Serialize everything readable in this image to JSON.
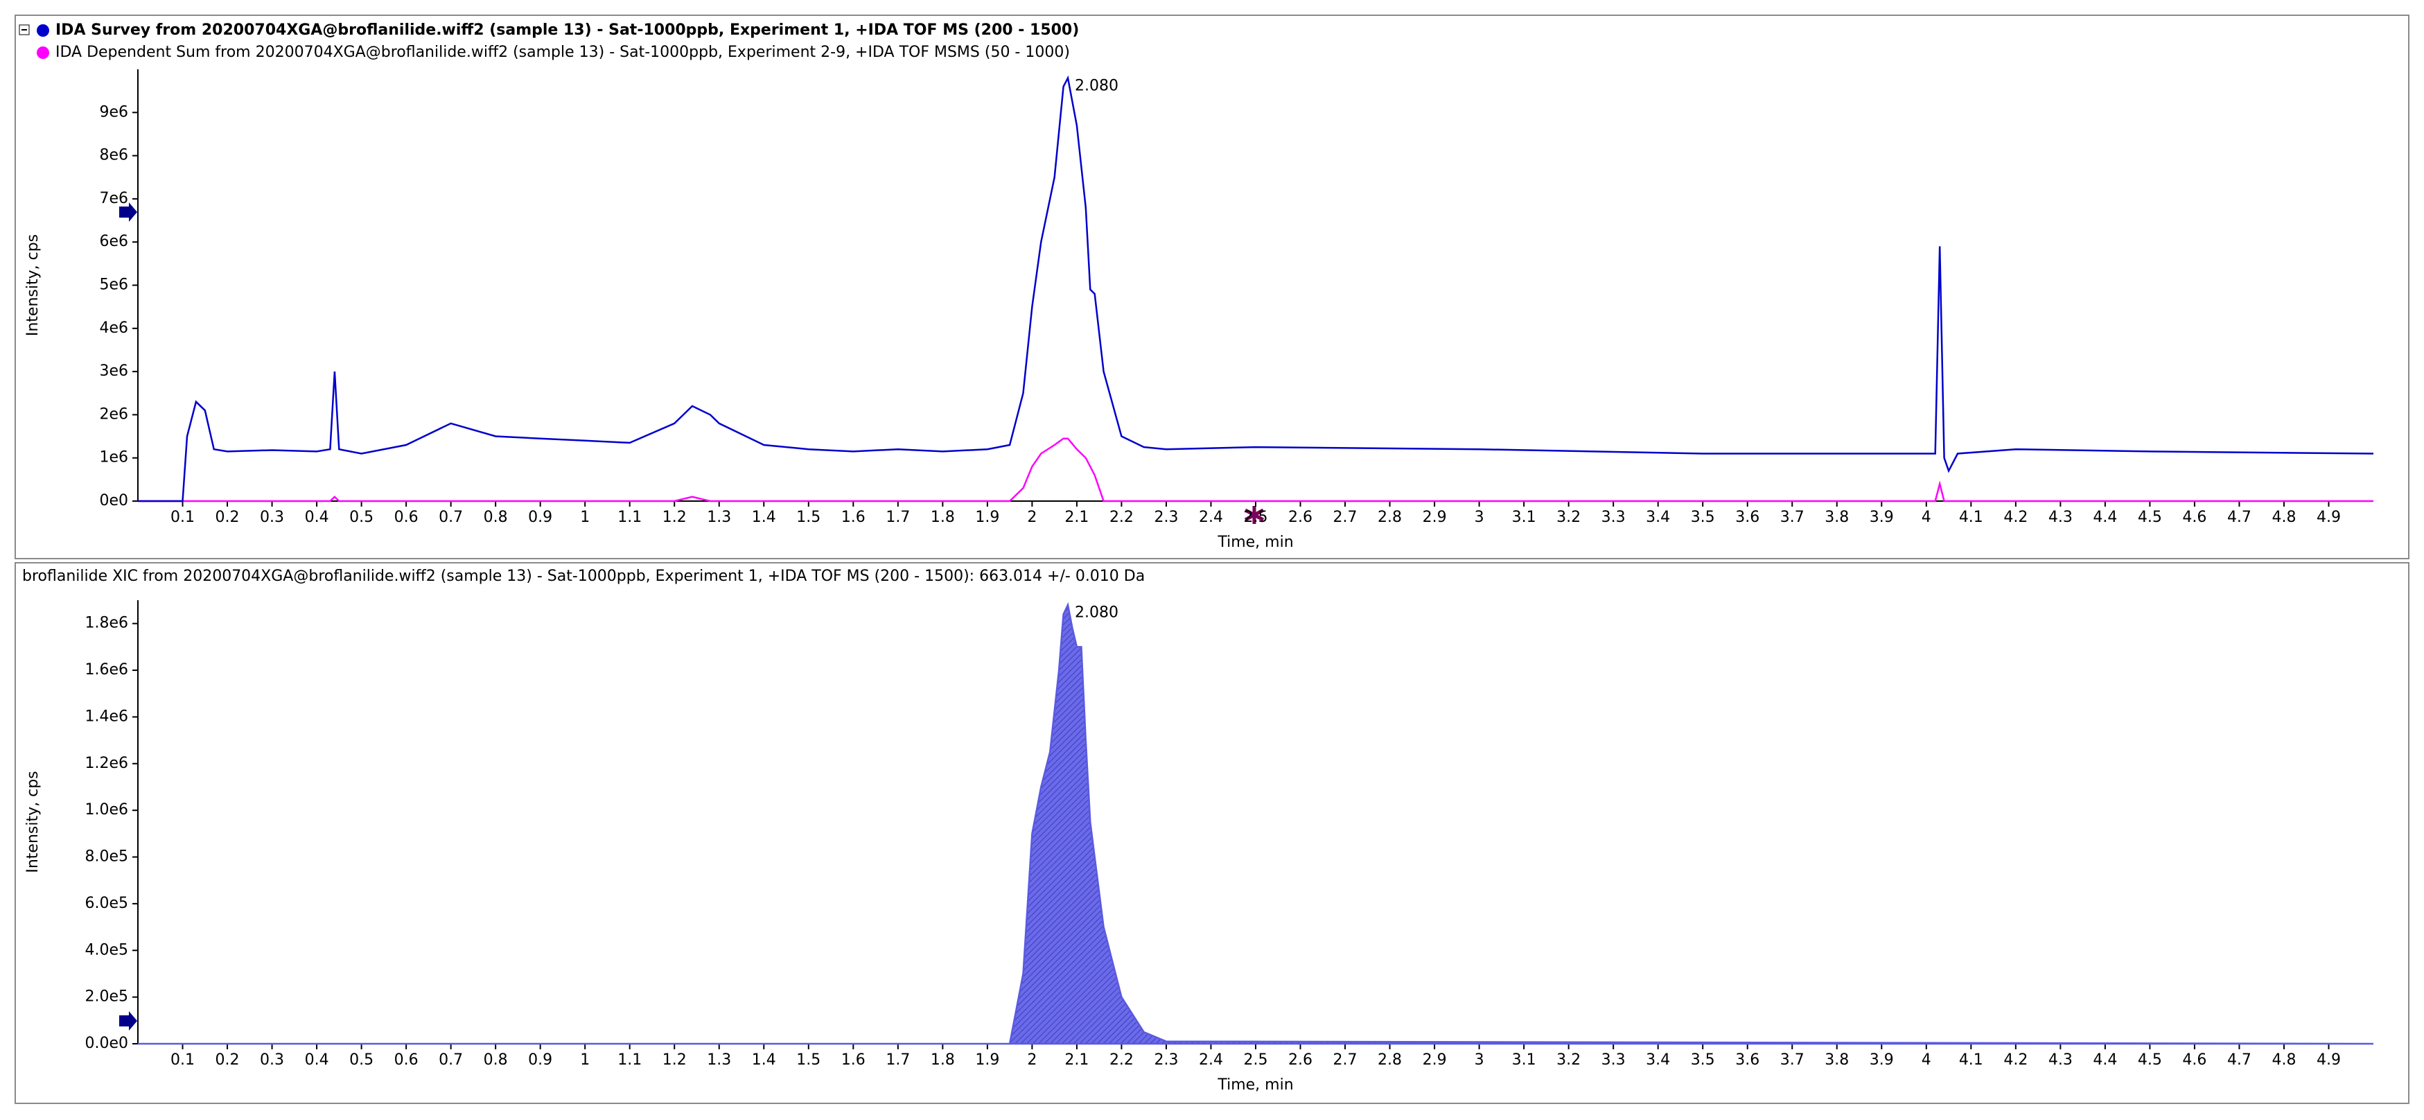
{
  "chart_data": [
    {
      "type": "line",
      "series": [
        {
          "name": "IDA Survey from 20200704XGA@broflanilide.wiff2 (sample 13) - Sat-1000ppb, Experiment 1, +IDA TOF MS (200 - 1500)",
          "color": "#0000cc",
          "values": [
            0,
            0,
            1500000,
            2300000,
            2100000,
            1200000,
            1150000,
            1180000,
            1150000,
            1200000,
            3000000,
            1200000,
            1100000,
            1300000,
            1800000,
            1500000,
            1450000,
            1400000,
            1350000,
            1800000,
            2200000,
            2000000,
            1800000,
            1300000,
            1200000,
            1150000,
            1200000,
            1150000,
            1200000,
            1300000,
            2500000,
            4500000,
            6000000,
            7500000,
            9600000,
            9800000,
            8700000,
            6800000,
            4900000,
            4800000,
            3000000,
            1500000,
            1250000,
            1200000,
            1250000,
            1200000,
            1100000,
            1100000,
            1100000,
            5900000,
            1000000,
            700000,
            1100000,
            1200000,
            1150000,
            1100000
          ]
        },
        {
          "name": "IDA Dependent Sum from 20200704XGA@broflanilide.wiff2 (sample 13) - Sat-1000ppb, Experiment 2-9, +IDA TOF MSMS (50 - 1000)",
          "color": "#ff00ff",
          "values": [
            0,
            0,
            0,
            0,
            0,
            0,
            0,
            0,
            0,
            0,
            100000,
            0,
            0,
            0,
            0,
            0,
            0,
            0,
            0,
            0,
            100000,
            0,
            0,
            0,
            0,
            0,
            0,
            0,
            0,
            0,
            300000,
            800000,
            1100000,
            1300000,
            1450000,
            1450000,
            1200000,
            1000000,
            800000,
            600000,
            0,
            0,
            0,
            0,
            0,
            0,
            0,
            0,
            0,
            400000,
            0,
            0,
            0,
            0,
            0,
            0
          ]
        }
      ],
      "x": [
        0,
        0.1,
        0.11,
        0.13,
        0.15,
        0.17,
        0.2,
        0.3,
        0.4,
        0.43,
        0.44,
        0.45,
        0.5,
        0.6,
        0.7,
        0.8,
        0.9,
        1.0,
        1.1,
        1.2,
        1.24,
        1.28,
        1.3,
        1.4,
        1.5,
        1.6,
        1.7,
        1.8,
        1.9,
        1.95,
        1.98,
        2.0,
        2.02,
        2.05,
        2.07,
        2.08,
        2.1,
        2.12,
        2.13,
        2.14,
        2.16,
        2.2,
        2.25,
        2.3,
        2.5,
        3.0,
        3.5,
        4.0,
        4.02,
        4.03,
        4.04,
        4.05,
        4.07,
        4.2,
        4.5,
        5.0
      ],
      "xlim": [
        0,
        5.0
      ],
      "xticks": [
        0.1,
        0.2,
        0.3,
        0.4,
        0.5,
        0.6,
        0.7,
        0.8,
        0.9,
        1.0,
        1.1,
        1.2,
        1.3,
        1.4,
        1.5,
        1.6,
        1.7,
        1.8,
        1.9,
        2.0,
        2.1,
        2.2,
        2.3,
        2.4,
        2.5,
        2.6,
        2.7,
        2.8,
        2.9,
        3.0,
        3.1,
        3.2,
        3.3,
        3.4,
        3.5,
        3.6,
        3.7,
        3.8,
        3.9,
        4.0,
        4.1,
        4.2,
        4.3,
        4.4,
        4.5,
        4.6,
        4.7,
        4.8,
        4.9
      ],
      "ylim": [
        0,
        10000000
      ],
      "yticks": [
        {
          "value": 0,
          "label": "0e0"
        },
        {
          "value": 1000000,
          "label": "1e6"
        },
        {
          "value": 2000000,
          "label": "2e6"
        },
        {
          "value": 3000000,
          "label": "3e6"
        },
        {
          "value": 4000000,
          "label": "4e6"
        },
        {
          "value": 5000000,
          "label": "5e6"
        },
        {
          "value": 6000000,
          "label": "6e6"
        },
        {
          "value": 7000000,
          "label": "7e6"
        },
        {
          "value": 8000000,
          "label": "8e6"
        },
        {
          "value": 9000000,
          "label": "9e6"
        }
      ],
      "xlabel": "Time, min",
      "ylabel": "Intensity, cps",
      "annotations": [
        "2.080"
      ]
    },
    {
      "type": "area",
      "title": "broflanilide XIC from 20200704XGA@broflanilide.wiff2 (sample 13) - Sat-1000ppb, Experiment 1, +IDA TOF MS (200 - 1500): 663.014 +/- 0.010 Da",
      "x": [
        0,
        1.9,
        1.95,
        1.98,
        2.0,
        2.02,
        2.04,
        2.06,
        2.07,
        2.08,
        2.09,
        2.1,
        2.11,
        2.12,
        2.13,
        2.14,
        2.16,
        2.2,
        2.25,
        2.3,
        5.0
      ],
      "values": [
        0,
        0,
        0,
        300000,
        900000,
        1100000,
        1250000,
        1600000,
        1840000,
        1880000,
        1780000,
        1700000,
        1700000,
        1300000,
        950000,
        800000,
        500000,
        200000,
        50000,
        10000,
        0
      ],
      "color": "#5a5ae0",
      "xlim": [
        0,
        5.0
      ],
      "xticks": [
        0.1,
        0.2,
        0.3,
        0.4,
        0.5,
        0.6,
        0.7,
        0.8,
        0.9,
        1.0,
        1.1,
        1.2,
        1.3,
        1.4,
        1.5,
        1.6,
        1.7,
        1.8,
        1.9,
        2.0,
        2.1,
        2.2,
        2.3,
        2.4,
        2.5,
        2.6,
        2.7,
        2.8,
        2.9,
        3.0,
        3.1,
        3.2,
        3.3,
        3.4,
        3.5,
        3.6,
        3.7,
        3.8,
        3.9,
        4.0,
        4.1,
        4.2,
        4.3,
        4.4,
        4.5,
        4.6,
        4.7,
        4.8,
        4.9
      ],
      "ylim": [
        0,
        1900000
      ],
      "yticks": [
        {
          "value": 0,
          "label": "0.0e0"
        },
        {
          "value": 200000,
          "label": "2.0e5"
        },
        {
          "value": 400000,
          "label": "4.0e5"
        },
        {
          "value": 600000,
          "label": "6.0e5"
        },
        {
          "value": 800000,
          "label": "8.0e5"
        },
        {
          "value": 1000000,
          "label": "1.0e6"
        },
        {
          "value": 1200000,
          "label": "1.2e6"
        },
        {
          "value": 1400000,
          "label": "1.4e6"
        },
        {
          "value": 1600000,
          "label": "1.6e6"
        },
        {
          "value": 1800000,
          "label": "1.8e6"
        }
      ],
      "xlabel": "Time, min",
      "ylabel": "Intensity, cps",
      "annotations": [
        "2.080"
      ]
    }
  ]
}
